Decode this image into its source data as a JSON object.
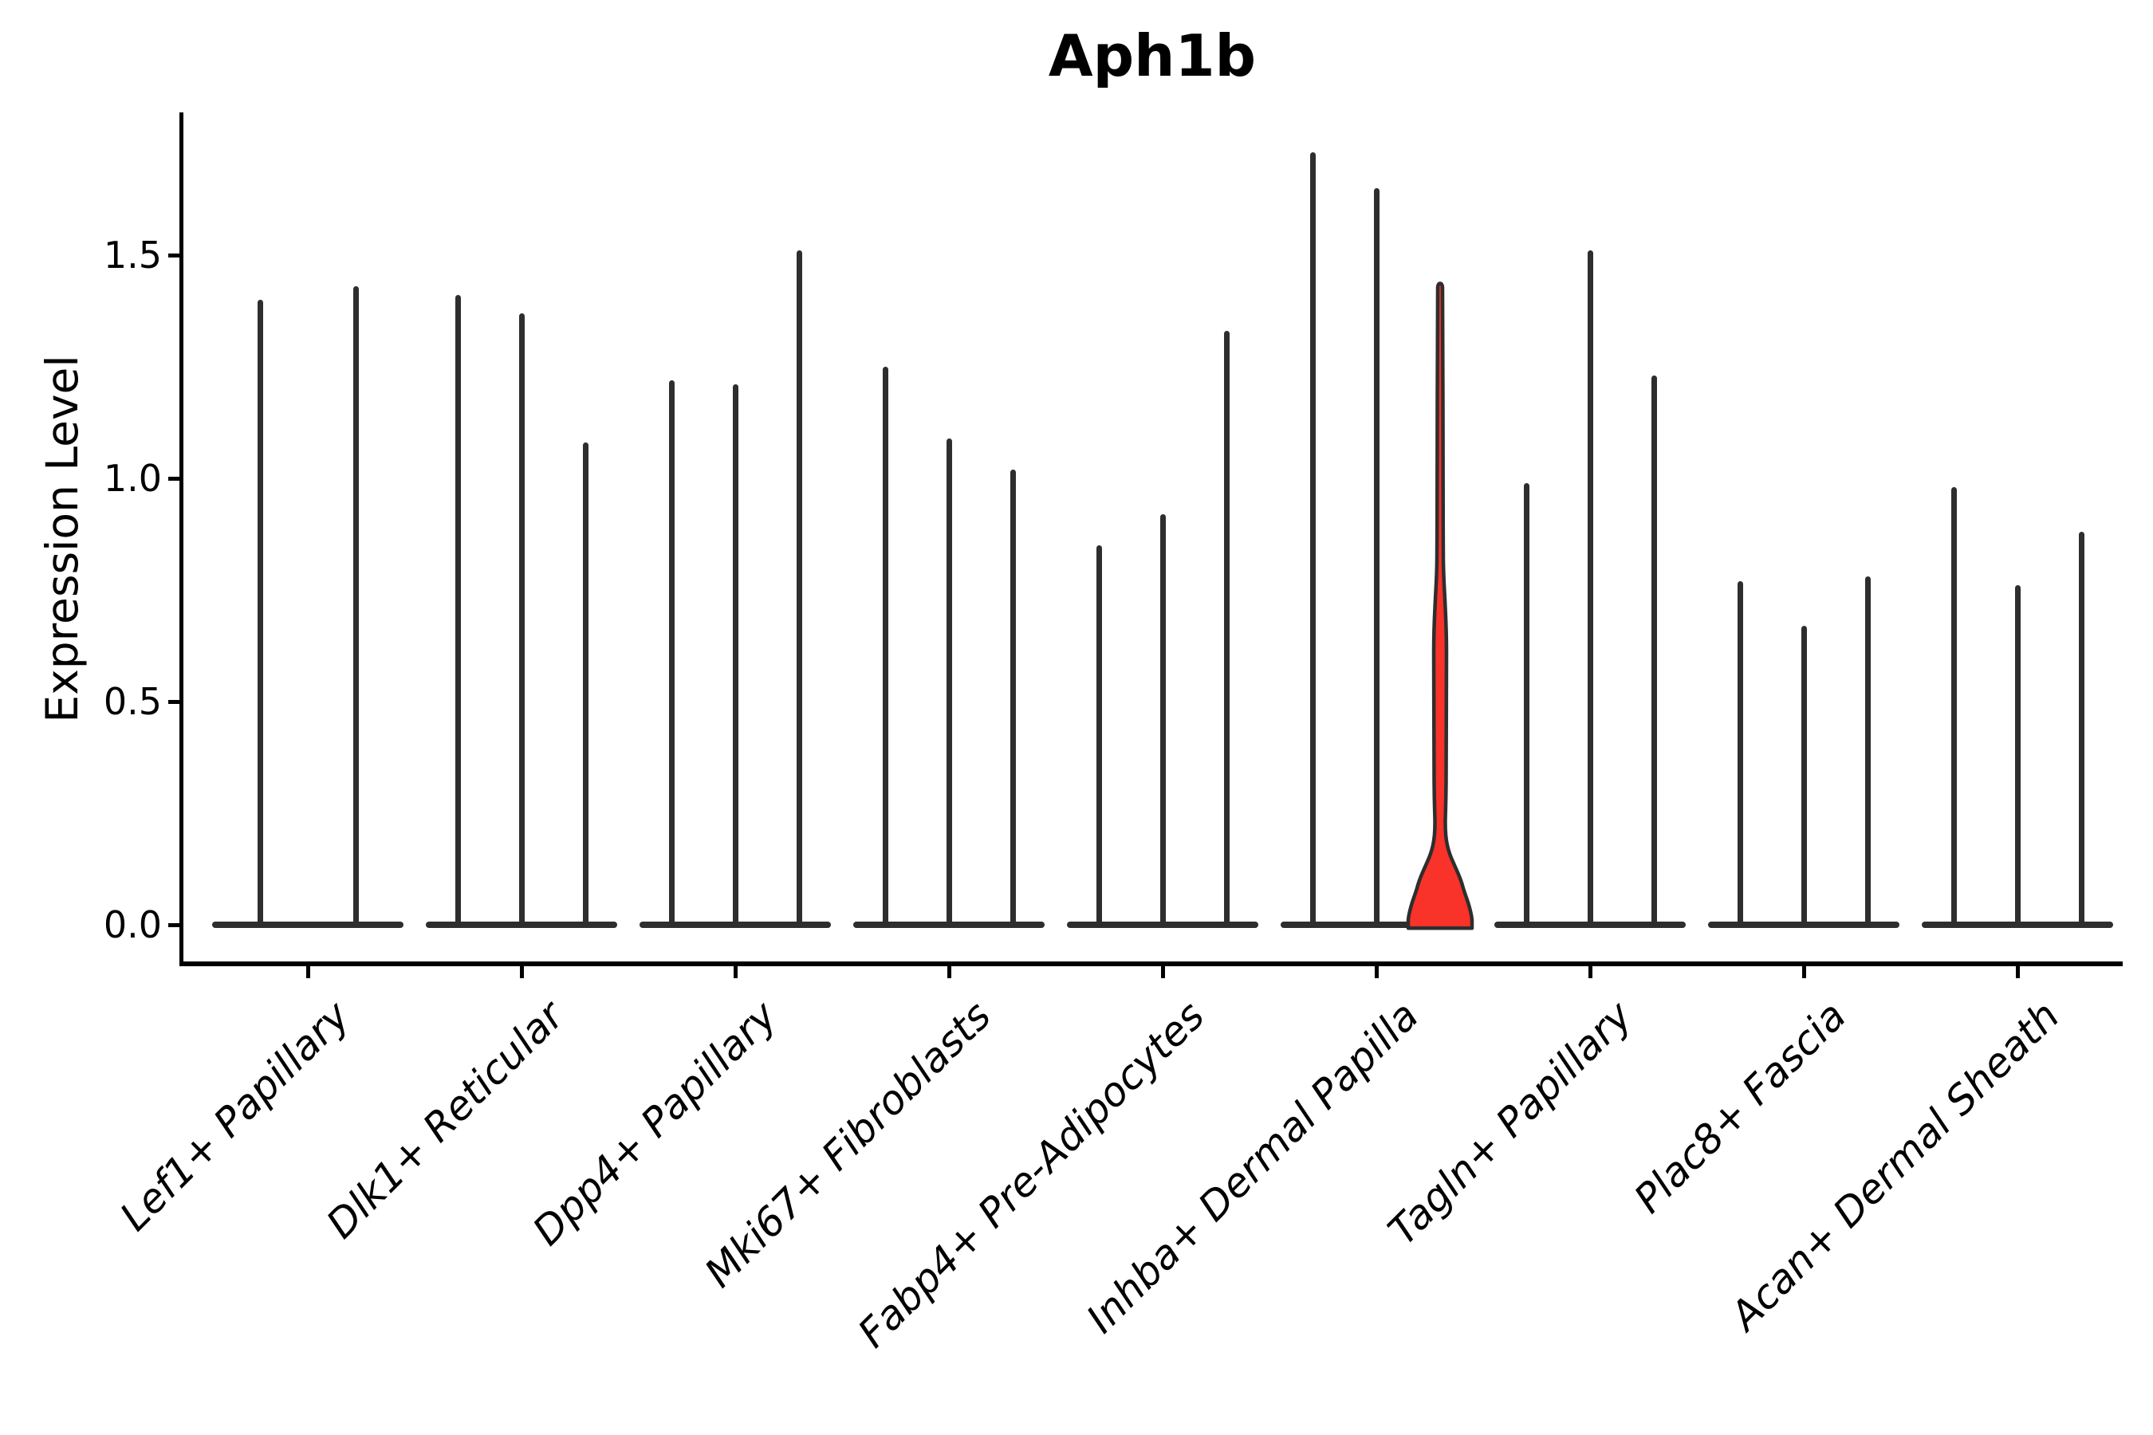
{
  "title": "Aph1b",
  "y_axis": {
    "label": "Expression Level",
    "tick_labels": [
      "0.0",
      "0.5",
      "1.0",
      "1.5"
    ],
    "tick_values": [
      0.0,
      0.5,
      1.0,
      1.5
    ]
  },
  "x_axis": {
    "tick_labels": [
      "Lef1+ Papillary",
      "Dlk1+ Reticular",
      "Dpp4+ Papillary",
      "Mki67+ Fibroblasts",
      "Fabp4+ Pre-Adipocytes",
      "Inhba+ Dermal Papilla",
      "Tagln+ Papillary",
      "Plac8+ Fascia",
      "Acan+ Dermal Sheath"
    ]
  },
  "chart_data": {
    "type": "violin",
    "title": "Aph1b",
    "xlabel": "",
    "ylabel": "Expression Level",
    "ylim": [
      0,
      1.82
    ],
    "yticks": [
      0.0,
      0.5,
      1.0,
      1.5
    ],
    "grid": false,
    "legend": "none",
    "categories": [
      "Lef1+ Papillary",
      "Dlk1+ Reticular",
      "Dpp4+ Papillary",
      "Mki67+ Fibroblasts",
      "Fabp4+ Pre-Adipocytes",
      "Inhba+ Dermal Papilla",
      "Tagln+ Papillary",
      "Plac8+ Fascia",
      "Acan+ Dermal Sheath"
    ],
    "violins": [
      {
        "category": "Lef1+ Papillary",
        "max_expression": [
          1.4,
          1.43
        ],
        "highlighted": [
          false,
          false
        ]
      },
      {
        "category": "Dlk1+ Reticular",
        "max_expression": [
          1.41,
          1.37,
          1.08
        ],
        "highlighted": [
          false,
          false,
          false
        ]
      },
      {
        "category": "Dpp4+ Papillary",
        "max_expression": [
          1.22,
          1.21,
          1.51
        ],
        "highlighted": [
          false,
          false,
          false
        ]
      },
      {
        "category": "Mki67+ Fibroblasts",
        "max_expression": [
          1.25,
          1.09,
          1.02
        ],
        "highlighted": [
          false,
          false,
          false
        ]
      },
      {
        "category": "Fabp4+ Pre-Adipocytes",
        "max_expression": [
          0.85,
          0.92,
          1.33
        ],
        "highlighted": [
          false,
          false,
          false
        ]
      },
      {
        "category": "Inhba+ Dermal Papilla",
        "max_expression": [
          1.73,
          1.65,
          1.44
        ],
        "highlighted": [
          false,
          false,
          true
        ]
      },
      {
        "category": "Tagln+ Papillary",
        "max_expression": [
          0.99,
          1.51,
          1.23
        ],
        "highlighted": [
          false,
          false,
          false
        ]
      },
      {
        "category": "Plac8+ Fascia",
        "max_expression": [
          0.77,
          0.67,
          0.78
        ],
        "highlighted": [
          false,
          false,
          false
        ]
      },
      {
        "category": "Acan+ Dermal Sheath",
        "max_expression": [
          0.98,
          0.76,
          0.88
        ],
        "highlighted": [
          false,
          false,
          false
        ]
      }
    ],
    "highlight": {
      "category": "Inhba+ Dermal Papilla",
      "violin_index": 2,
      "max_expression": 1.44,
      "dense_body_up_to": 0.18
    },
    "colors": {
      "violin_outline": "#2e2e2e",
      "highlight_fill": "#f9322a",
      "axis_spine": "#000000",
      "text": "#000000",
      "background": "#ffffff"
    }
  }
}
